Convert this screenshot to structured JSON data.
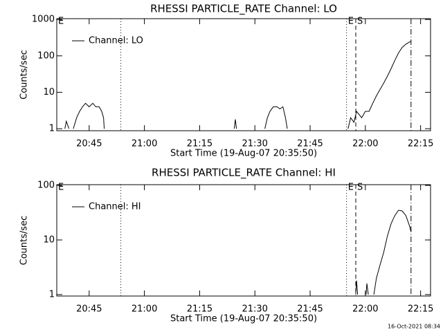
{
  "chart_data": [
    {
      "type": "line",
      "title": "RHESSI PARTICLE_RATE Channel: LO",
      "x_label": "Start Time (19-Aug-07 20:35:50)",
      "y_label": "Counts/sec",
      "log_y": true,
      "legend": "top-left",
      "xlim": [
        1236.2,
        1337.7
      ],
      "ylim": [
        0.88,
        1050
      ],
      "xticks": [
        {
          "value": 1245,
          "label": "20:45"
        },
        {
          "value": 1260,
          "label": "21:00"
        },
        {
          "value": 1275,
          "label": "21:15"
        },
        {
          "value": 1290,
          "label": "21:30"
        },
        {
          "value": 1305,
          "label": "21:45"
        },
        {
          "value": 1320,
          "label": "22:00"
        },
        {
          "value": 1335,
          "label": "22:15"
        }
      ],
      "yticks": [
        1,
        10,
        100,
        1000
      ],
      "markers": [
        {
          "x": 1236.2,
          "style": "none",
          "label": "E"
        },
        {
          "x": 1253.6,
          "style": "dotted"
        },
        {
          "x": 1314.9,
          "style": "dotted",
          "label": "E"
        },
        {
          "x": 1317.4,
          "style": "dashed",
          "label": "S"
        },
        {
          "x": 1332.4,
          "style": "dashdot"
        }
      ],
      "x": [
        1238.4,
        1238.8,
        1239.5,
        1240,
        1240.7,
        1241.6,
        1242.4,
        1243.2,
        1244,
        1245,
        1246,
        1246.8,
        1247.7,
        1248.4,
        1248.9,
        1249.1,
        1270,
        1284.4,
        1284.7,
        1285,
        1290,
        1292.7,
        1293.4,
        1294.1,
        1295,
        1296,
        1296.8,
        1297.6,
        1298.3,
        1298.8,
        1305,
        1315.3,
        1316,
        1316.9,
        1317.6,
        1319,
        1320,
        1321,
        1322,
        1323,
        1324,
        1325,
        1326,
        1327,
        1328,
        1329,
        1330,
        1331,
        1332,
        1332.4
      ],
      "series": [
        {
          "name": "Channel: LO",
          "color": "#000000",
          "values": [
            1,
            1.6,
            1,
            null,
            1,
            2,
            3,
            4,
            5,
            4,
            5,
            4,
            4,
            3,
            2,
            1,
            null,
            1,
            1.8,
            1,
            null,
            1,
            2,
            3,
            4,
            4,
            3.5,
            4,
            2,
            1,
            null,
            1,
            2,
            1.5,
            3,
            2,
            3,
            3,
            5,
            8,
            12,
            18,
            28,
            45,
            75,
            120,
            170,
            210,
            240,
            250
          ]
        }
      ]
    },
    {
      "type": "line",
      "title": "RHESSI PARTICLE_RATE Channel: HI",
      "x_label": "Start Time (19-Aug-07 20:35:50)",
      "y_label": "Counts/sec",
      "log_y": true,
      "legend": "top-left",
      "xlim": [
        1236.2,
        1337.7
      ],
      "ylim": [
        0.94,
        103
      ],
      "xticks": [
        {
          "value": 1245,
          "label": "20:45"
        },
        {
          "value": 1260,
          "label": "21:00"
        },
        {
          "value": 1275,
          "label": "21:15"
        },
        {
          "value": 1290,
          "label": "21:30"
        },
        {
          "value": 1305,
          "label": "21:45"
        },
        {
          "value": 1320,
          "label": "22:00"
        },
        {
          "value": 1335,
          "label": "22:15"
        }
      ],
      "yticks": [
        1,
        10,
        100
      ],
      "markers": [
        {
          "x": 1236.2,
          "style": "none",
          "label": "E"
        },
        {
          "x": 1253.6,
          "style": "dotted"
        },
        {
          "x": 1314.9,
          "style": "dotted",
          "label": "E"
        },
        {
          "x": 1317.4,
          "style": "dashed",
          "label": "S"
        },
        {
          "x": 1332.4,
          "style": "dashdot"
        }
      ],
      "x": [
        1317.4,
        1317.6,
        1317.9,
        1319,
        1320.2,
        1320.4,
        1320.8,
        1321.5,
        1322.3,
        1323,
        1324,
        1325,
        1326,
        1327,
        1328,
        1329,
        1330,
        1331,
        1332,
        1332.4
      ],
      "series": [
        {
          "name": "Channel: HI",
          "color": "#000000",
          "values": [
            1,
            1.8,
            1,
            null,
            1,
            1.6,
            1,
            null,
            1,
            2,
            3.5,
            6,
            12,
            20,
            28,
            35,
            34,
            28,
            18,
            14
          ]
        }
      ]
    }
  ],
  "footer": "16-Oct-2021 08:34"
}
